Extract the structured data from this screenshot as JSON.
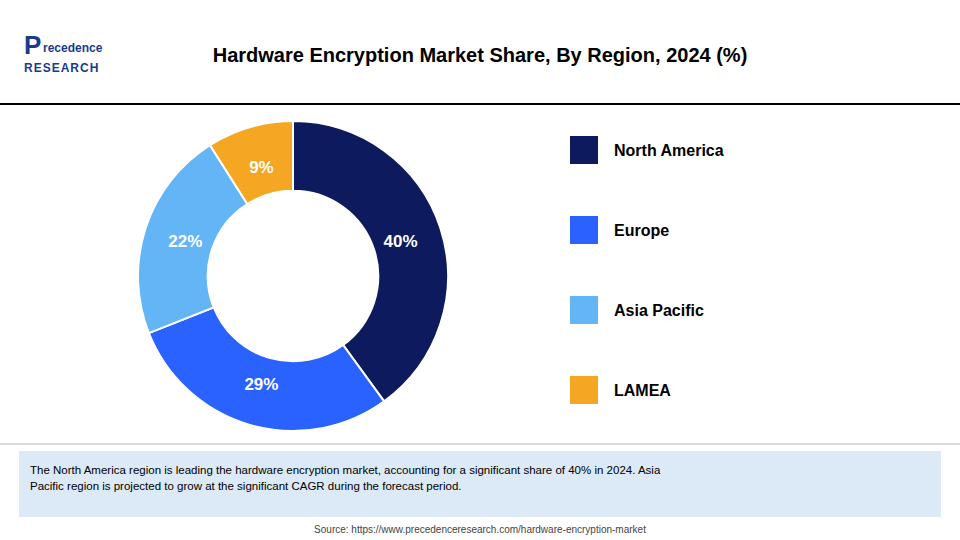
{
  "chart_data": {
    "type": "donut",
    "title": "Hardware Encryption Market Share, By Region, 2024 (%)",
    "categories": [
      "North America",
      "Europe",
      "Asia Pacific",
      "LAMEA"
    ],
    "values": [
      40,
      29,
      22,
      9
    ],
    "value_labels": [
      "40%",
      "29%",
      "22%",
      "9%"
    ],
    "colors": [
      "#0d1b5e",
      "#2962ff",
      "#64b5f6",
      "#f5a623"
    ],
    "data_labels": true,
    "legend": "right",
    "annotations": [
      "P",
      "recedence",
      "RESEARCH",
      "The North America region is leading the hardware encryption market, accounting for a significant share of 40% in 2024. Asia\nPacific region is projected to grow at the significant CAGR during the forecast period.",
      "Source: https://www.precedenceresearch.com/hardware-encryption-market"
    ]
  }
}
